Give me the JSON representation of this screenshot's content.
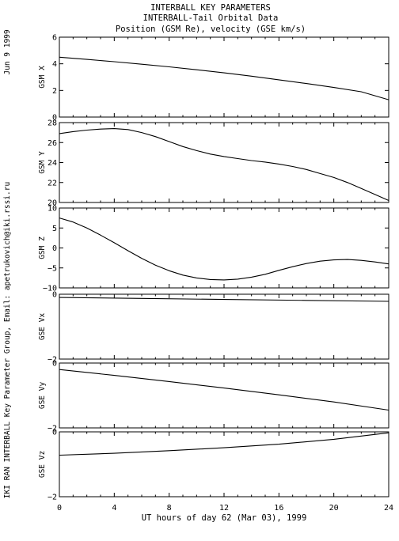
{
  "header": {
    "title_lines": [
      "INTERBALL KEY PARAMETERS",
      "INTERBALL-Tail Orbital Data",
      "Position (GSM Re), velocity (GSE km/s)"
    ],
    "date_stamp": "Jun  9 1999",
    "credit": "IKI RAN INTERBALL Key Parameter Group, Email: apetrukovich@iki.rssi.ru"
  },
  "x_axis": {
    "label": "UT hours of day  62 (Mar 03), 1999",
    "range": [
      0,
      24
    ],
    "ticks": [
      0,
      4,
      8,
      12,
      16,
      20,
      24
    ]
  },
  "chart_data": [
    {
      "type": "line",
      "ylabel": "GSM X",
      "ylim": [
        0,
        6
      ],
      "yticks": [
        0,
        2,
        4,
        6
      ],
      "x": [
        0,
        2,
        4,
        6,
        8,
        10,
        12,
        14,
        16,
        18,
        20,
        22,
        24
      ],
      "values": [
        4.5,
        4.33,
        4.16,
        3.97,
        3.77,
        3.55,
        3.32,
        3.07,
        2.8,
        2.52,
        2.22,
        1.9,
        1.3
      ]
    },
    {
      "type": "line",
      "ylabel": "GSM Y",
      "ylim": [
        20,
        28
      ],
      "yticks": [
        20,
        22,
        24,
        26,
        28
      ],
      "x": [
        0,
        1,
        2,
        3,
        4,
        5,
        6,
        7,
        8,
        9,
        10,
        11,
        12,
        13,
        14,
        15,
        16,
        17,
        18,
        19,
        20,
        21,
        22,
        23,
        24
      ],
      "values": [
        26.9,
        27.1,
        27.25,
        27.35,
        27.4,
        27.3,
        27.0,
        26.6,
        26.1,
        25.6,
        25.2,
        24.85,
        24.6,
        24.4,
        24.2,
        24.05,
        23.85,
        23.6,
        23.3,
        22.9,
        22.5,
        22.0,
        21.4,
        20.8,
        20.2
      ]
    },
    {
      "type": "line",
      "ylabel": "GSM Z",
      "ylim": [
        -10,
        10
      ],
      "yticks": [
        -10,
        -5,
        0,
        5,
        10
      ],
      "x": [
        0,
        1,
        2,
        3,
        4,
        5,
        6,
        7,
        8,
        9,
        10,
        11,
        12,
        13,
        14,
        15,
        16,
        17,
        18,
        19,
        20,
        21,
        22,
        23,
        24
      ],
      "values": [
        7.5,
        6.5,
        5.0,
        3.2,
        1.3,
        -0.7,
        -2.6,
        -4.3,
        -5.7,
        -6.8,
        -7.5,
        -7.9,
        -8.0,
        -7.8,
        -7.3,
        -6.6,
        -5.6,
        -4.7,
        -3.9,
        -3.3,
        -3.0,
        -2.9,
        -3.1,
        -3.5,
        -4.0
      ]
    },
    {
      "type": "line",
      "ylabel": "GSE Vx",
      "ylim": [
        -2,
        0
      ],
      "yticks": [
        -2,
        0
      ],
      "x": [
        0,
        6,
        12,
        18,
        24
      ],
      "values": [
        -0.1,
        -0.13,
        -0.16,
        -0.19,
        -0.22
      ]
    },
    {
      "type": "line",
      "ylabel": "GSE Vy",
      "ylim": [
        -2,
        0
      ],
      "yticks": [
        -2,
        0
      ],
      "x": [
        0,
        4,
        8,
        12,
        16,
        20,
        24
      ],
      "values": [
        -0.2,
        -0.38,
        -0.57,
        -0.77,
        -0.98,
        -1.2,
        -1.45
      ]
    },
    {
      "type": "line",
      "ylabel": "GSE Vz",
      "ylim": [
        -2,
        0
      ],
      "yticks": [
        -2,
        0
      ],
      "x": [
        0,
        4,
        8,
        12,
        16,
        20,
        24
      ],
      "values": [
        -0.72,
        -0.66,
        -0.58,
        -0.49,
        -0.38,
        -0.23,
        -0.03
      ]
    }
  ]
}
